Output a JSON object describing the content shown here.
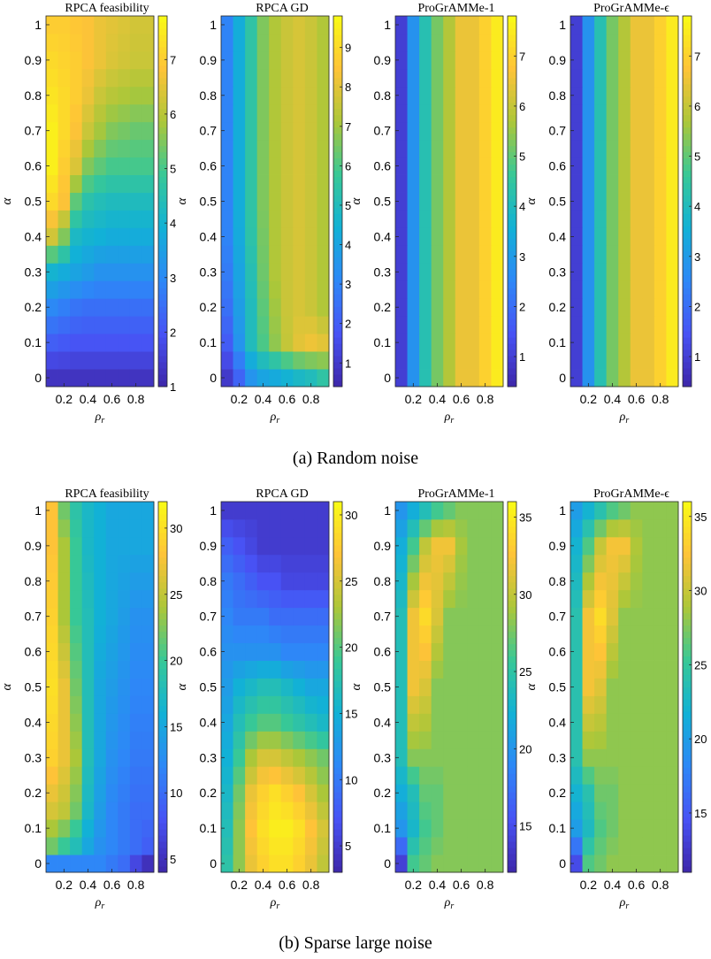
{
  "figure_captions": [
    "(a) Random noise",
    "(b) Sparse large noise"
  ],
  "chart_data": [
    {
      "type": "heatmap",
      "panel": "a",
      "title": "RPCA feasibility",
      "xlabel": "ρr",
      "ylabel": "α",
      "x_ticks": [
        0.2,
        0.4,
        0.6,
        0.8
      ],
      "y_ticks": [
        0,
        0.1,
        0.2,
        0.3,
        0.4,
        0.5,
        0.6,
        0.7,
        0.8,
        0.9,
        1
      ],
      "xlim": [
        0.05,
        0.95
      ],
      "ylim": [
        -0.025,
        1.025
      ],
      "clim": [
        1,
        7.8
      ],
      "colorbar_ticks": [
        1,
        2,
        3,
        4,
        5,
        6,
        7
      ],
      "colormap": "parula",
      "cols": [
        0.1,
        0.2,
        0.3,
        0.4,
        0.5,
        0.6,
        0.7,
        0.8,
        0.9
      ],
      "knots_y": [
        0,
        0.1,
        0.2,
        0.3,
        0.4,
        0.5,
        0.6,
        0.7,
        0.8,
        0.9,
        1
      ],
      "knots_values": [
        [
          1.3,
          1.3,
          1.3,
          1.3,
          1.3,
          1.3,
          1.3,
          1.3,
          1.3
        ],
        [
          2.2,
          2.1,
          2.0,
          2.0,
          2.0,
          2.0,
          2.0,
          2.0,
          2.0
        ],
        [
          3.0,
          2.8,
          2.6,
          2.5,
          2.5,
          2.5,
          2.5,
          2.5,
          2.5
        ],
        [
          4.0,
          3.8,
          3.6,
          3.4,
          3.2,
          3.2,
          3.2,
          3.2,
          3.2
        ],
        [
          6.3,
          5.5,
          4.2,
          4.0,
          3.9,
          3.8,
          3.8,
          3.8,
          3.8
        ],
        [
          7.2,
          6.8,
          5.2,
          4.6,
          4.4,
          4.3,
          4.3,
          4.3,
          4.3
        ],
        [
          7.6,
          7.0,
          6.4,
          5.5,
          5.2,
          5.0,
          5.0,
          5.0,
          5.0
        ],
        [
          7.6,
          7.2,
          6.8,
          6.2,
          5.8,
          5.5,
          5.4,
          5.3,
          5.3
        ],
        [
          7.4,
          7.2,
          7.0,
          6.6,
          6.2,
          6.0,
          5.9,
          5.8,
          5.8
        ],
        [
          7.2,
          7.1,
          7.0,
          6.8,
          6.6,
          6.4,
          6.3,
          6.2,
          6.2
        ],
        [
          7.0,
          7.0,
          6.9,
          6.8,
          6.6,
          6.5,
          6.4,
          6.3,
          6.3
        ]
      ]
    },
    {
      "type": "heatmap",
      "panel": "a",
      "title": "RPCA GD",
      "xlabel": "ρr",
      "ylabel": "α",
      "x_ticks": [
        0.2,
        0.4,
        0.6,
        0.8
      ],
      "y_ticks": [
        0,
        0.1,
        0.2,
        0.3,
        0.4,
        0.5,
        0.6,
        0.7,
        0.8,
        0.9,
        1
      ],
      "xlim": [
        0.05,
        0.95
      ],
      "ylim": [
        -0.025,
        1.025
      ],
      "clim": [
        0.4,
        9.8
      ],
      "colorbar_ticks": [
        1,
        2,
        3,
        4,
        5,
        6,
        7,
        8,
        9
      ],
      "colormap": "parula",
      "cols": [
        0.1,
        0.2,
        0.3,
        0.4,
        0.5,
        0.6,
        0.7,
        0.8,
        0.9
      ],
      "knots_y": [
        0,
        0.1,
        0.2,
        0.3,
        0.4,
        0.5,
        0.6,
        0.7,
        0.8,
        0.9,
        1
      ],
      "knots_values": [
        [
          1.0,
          2.2,
          3.5,
          4.0,
          4.2,
          4.5,
          4.8,
          5.0,
          5.5
        ],
        [
          2.0,
          3.5,
          5.0,
          6.0,
          6.8,
          7.5,
          8.0,
          8.2,
          8.0
        ],
        [
          2.5,
          3.8,
          5.0,
          6.2,
          7.0,
          7.6,
          7.8,
          7.6,
          7.2
        ],
        [
          2.8,
          4.0,
          5.2,
          6.4,
          7.2,
          7.6,
          7.8,
          7.6,
          7.2
        ],
        [
          3.0,
          4.2,
          5.4,
          6.5,
          7.2,
          7.6,
          7.8,
          7.6,
          7.2
        ],
        [
          3.0,
          4.3,
          5.5,
          6.6,
          7.2,
          7.6,
          7.8,
          7.6,
          7.2
        ],
        [
          3.0,
          4.3,
          5.5,
          6.6,
          7.2,
          7.6,
          7.8,
          7.6,
          7.2
        ],
        [
          3.0,
          4.3,
          5.5,
          6.6,
          7.2,
          7.6,
          7.8,
          7.6,
          7.2
        ],
        [
          3.0,
          4.3,
          5.5,
          6.6,
          7.2,
          7.6,
          7.8,
          7.6,
          7.2
        ],
        [
          3.0,
          4.3,
          5.5,
          6.6,
          7.2,
          7.6,
          7.8,
          7.6,
          7.2
        ],
        [
          3.0,
          4.3,
          5.5,
          6.6,
          7.2,
          7.6,
          7.8,
          7.6,
          7.2
        ]
      ]
    },
    {
      "type": "heatmap",
      "panel": "a",
      "title": "ProGrAMMe-1",
      "xlabel": "ρr",
      "ylabel": "α",
      "x_ticks": [
        0.2,
        0.4,
        0.6,
        0.8
      ],
      "y_ticks": [
        0,
        0.1,
        0.2,
        0.3,
        0.4,
        0.5,
        0.6,
        0.7,
        0.8,
        0.9,
        1
      ],
      "xlim": [
        0.05,
        0.95
      ],
      "ylim": [
        -0.025,
        1.025
      ],
      "clim": [
        0.4,
        7.8
      ],
      "colorbar_ticks": [
        1,
        2,
        3,
        4,
        5,
        6,
        7
      ],
      "colormap": "parula",
      "cols": [
        0.1,
        0.2,
        0.3,
        0.4,
        0.5,
        0.6,
        0.7,
        0.8,
        0.9
      ],
      "knots_y": [
        0,
        1
      ],
      "knots_values": [
        [
          1.0,
          2.8,
          4.2,
          5.2,
          5.8,
          6.5,
          6.5,
          7.0,
          7.5
        ],
        [
          1.0,
          2.8,
          4.2,
          5.2,
          5.8,
          6.5,
          6.5,
          7.0,
          7.5
        ]
      ]
    },
    {
      "type": "heatmap",
      "panel": "a",
      "title": "ProGrAMMe-ϵ",
      "xlabel": "ρr",
      "ylabel": "α",
      "x_ticks": [
        0.2,
        0.4,
        0.6,
        0.8
      ],
      "y_ticks": [
        0,
        0.1,
        0.2,
        0.3,
        0.4,
        0.5,
        0.6,
        0.7,
        0.8,
        0.9,
        1
      ],
      "xlim": [
        0.05,
        0.95
      ],
      "ylim": [
        -0.025,
        1.025
      ],
      "clim": [
        0.4,
        7.8
      ],
      "colorbar_ticks": [
        1,
        2,
        3,
        4,
        5,
        6,
        7
      ],
      "colormap": "parula",
      "cols": [
        0.1,
        0.2,
        0.3,
        0.4,
        0.5,
        0.6,
        0.7,
        0.8,
        0.9
      ],
      "knots_y": [
        0,
        1
      ],
      "knots_values": [
        [
          1.0,
          2.8,
          4.2,
          5.2,
          5.8,
          6.5,
          6.5,
          7.0,
          7.5
        ],
        [
          1.0,
          2.8,
          4.2,
          5.2,
          5.8,
          6.5,
          6.5,
          7.0,
          7.5
        ]
      ]
    },
    {
      "type": "heatmap",
      "panel": "b",
      "title": "RPCA feasibility",
      "xlabel": "ρr",
      "ylabel": "α",
      "x_ticks": [
        0.2,
        0.4,
        0.6,
        0.8
      ],
      "y_ticks": [
        0,
        0.1,
        0.2,
        0.3,
        0.4,
        0.5,
        0.6,
        0.7,
        0.8,
        0.9,
        1
      ],
      "xlim": [
        0.05,
        0.95
      ],
      "ylim": [
        -0.025,
        1.025
      ],
      "clim": [
        4,
        32
      ],
      "colorbar_ticks": [
        5,
        10,
        15,
        20,
        25,
        30
      ],
      "colormap": "parula",
      "cols": [
        0.1,
        0.2,
        0.3,
        0.4,
        0.5,
        0.6,
        0.7,
        0.8,
        0.9
      ],
      "knots_y": [
        0,
        0.05,
        0.15,
        0.3,
        0.5,
        0.7,
        0.9,
        1
      ],
      "knots_values": [
        [
          12,
          12,
          12,
          12,
          12,
          11,
          10,
          7,
          5
        ],
        [
          22,
          20,
          18,
          15,
          13,
          12,
          11,
          10,
          9
        ],
        [
          26,
          25,
          22,
          17,
          14,
          12,
          11,
          10,
          10
        ],
        [
          29,
          27,
          24,
          18,
          15,
          13,
          12,
          11,
          11
        ],
        [
          30,
          27,
          22,
          18,
          15,
          14,
          13,
          12,
          12
        ],
        [
          29,
          24,
          20,
          18,
          16,
          15,
          14,
          13,
          13
        ],
        [
          28,
          24,
          20,
          17,
          16,
          15,
          15,
          15,
          15
        ],
        [
          28,
          22,
          19,
          17,
          16,
          15,
          15,
          15,
          15
        ]
      ]
    },
    {
      "type": "heatmap",
      "panel": "b",
      "title": "RPCA GD",
      "xlabel": "ρr",
      "ylabel": "α",
      "x_ticks": [
        0.2,
        0.4,
        0.6,
        0.8
      ],
      "y_ticks": [
        0,
        0.1,
        0.2,
        0.3,
        0.4,
        0.5,
        0.6,
        0.7,
        0.8,
        0.9,
        1
      ],
      "xlim": [
        0.05,
        0.95
      ],
      "ylim": [
        -0.025,
        1.025
      ],
      "clim": [
        3,
        31
      ],
      "colorbar_ticks": [
        5,
        10,
        15,
        20,
        25,
        30
      ],
      "colormap": "parula",
      "cols": [
        0.1,
        0.2,
        0.3,
        0.4,
        0.5,
        0.6,
        0.7,
        0.8,
        0.9
      ],
      "knots_y": [
        0,
        0.1,
        0.2,
        0.3,
        0.4,
        0.5,
        0.6,
        0.7,
        0.8,
        0.9,
        1
      ],
      "knots_values": [
        [
          18,
          22,
          26,
          28,
          29,
          29,
          28,
          26,
          24
        ],
        [
          17,
          22,
          27,
          29,
          30,
          30,
          29,
          27,
          25
        ],
        [
          16,
          21,
          26,
          28,
          29,
          28,
          27,
          25,
          23
        ],
        [
          15,
          19,
          23,
          25,
          25,
          24,
          23,
          22,
          21
        ],
        [
          14,
          17,
          19,
          20,
          20,
          19,
          18,
          17,
          16
        ],
        [
          13,
          15,
          16,
          17,
          17,
          16,
          15,
          14,
          14
        ],
        [
          12,
          12,
          12,
          12,
          12,
          11,
          11,
          11,
          11
        ],
        [
          11,
          10,
          10,
          10,
          9,
          9,
          9,
          9,
          9
        ],
        [
          10,
          9,
          8,
          7,
          7,
          6,
          6,
          6,
          6
        ],
        [
          8,
          7,
          6,
          5,
          5,
          5,
          5,
          5,
          5
        ],
        [
          5,
          5,
          5,
          5,
          5,
          5,
          5,
          5,
          5
        ]
      ]
    },
    {
      "type": "heatmap",
      "panel": "b",
      "title": "ProGrAMMe-1",
      "xlabel": "ρr",
      "ylabel": "α",
      "x_ticks": [
        0.2,
        0.4,
        0.6,
        0.8
      ],
      "y_ticks": [
        0,
        0.1,
        0.2,
        0.3,
        0.4,
        0.5,
        0.6,
        0.7,
        0.8,
        0.9,
        1
      ],
      "xlim": [
        0.05,
        0.95
      ],
      "ylim": [
        -0.025,
        1.025
      ],
      "clim": [
        12,
        36
      ],
      "colorbar_ticks": [
        15,
        20,
        25,
        30,
        35
      ],
      "colormap": "parula",
      "cols": [
        0.1,
        0.2,
        0.3,
        0.4,
        0.5,
        0.6,
        0.7,
        0.8,
        0.9
      ],
      "knots_y": [
        0,
        0.1,
        0.2,
        0.3,
        0.5,
        0.7,
        0.9,
        1
      ],
      "knots_values": [
        [
          14,
          26,
          27,
          28,
          28,
          28,
          28,
          28,
          28
        ],
        [
          20,
          23,
          26,
          27,
          28,
          28,
          28,
          28,
          28
        ],
        [
          22,
          24,
          27,
          27,
          28,
          28,
          28,
          28,
          28
        ],
        [
          24,
          28,
          28,
          28,
          28,
          28,
          28,
          28,
          28
        ],
        [
          24,
          32,
          31,
          28,
          28,
          28,
          28,
          28,
          28
        ],
        [
          24,
          32,
          34,
          31,
          28,
          28,
          28,
          28,
          28
        ],
        [
          22,
          26,
          30,
          32,
          32,
          29,
          28,
          28,
          28
        ],
        [
          20,
          22,
          24,
          26,
          27,
          28,
          28,
          28,
          28
        ]
      ]
    },
    {
      "type": "heatmap",
      "panel": "b",
      "title": "ProGrAMMe-ϵ",
      "xlabel": "ρr",
      "ylabel": "α",
      "x_ticks": [
        0.2,
        0.4,
        0.6,
        0.8
      ],
      "y_ticks": [
        0,
        0.1,
        0.2,
        0.3,
        0.4,
        0.5,
        0.6,
        0.7,
        0.8,
        0.9,
        1
      ],
      "xlim": [
        0.05,
        0.95
      ],
      "ylim": [
        -0.025,
        1.025
      ],
      "clim": [
        11,
        36
      ],
      "colorbar_ticks": [
        15,
        20,
        25,
        30,
        35
      ],
      "colormap": "parula",
      "cols": [
        0.1,
        0.2,
        0.3,
        0.4,
        0.5,
        0.6,
        0.7,
        0.8,
        0.9
      ],
      "knots_y": [
        0,
        0.1,
        0.2,
        0.3,
        0.5,
        0.7,
        0.9,
        1
      ],
      "knots_values": [
        [
          14,
          26,
          27,
          28,
          28,
          28,
          28,
          28,
          28
        ],
        [
          20,
          23,
          26,
          27,
          28,
          28,
          28,
          28,
          28
        ],
        [
          22,
          24,
          27,
          27,
          28,
          28,
          28,
          28,
          28
        ],
        [
          24,
          28,
          28,
          28,
          28,
          28,
          28,
          28,
          28
        ],
        [
          24,
          32,
          31,
          28,
          28,
          28,
          28,
          28,
          28
        ],
        [
          24,
          32,
          34,
          31,
          28,
          28,
          28,
          28,
          28
        ],
        [
          22,
          26,
          30,
          32,
          32,
          29,
          28,
          28,
          28
        ],
        [
          20,
          22,
          24,
          26,
          27,
          28,
          28,
          28,
          28
        ]
      ]
    }
  ]
}
